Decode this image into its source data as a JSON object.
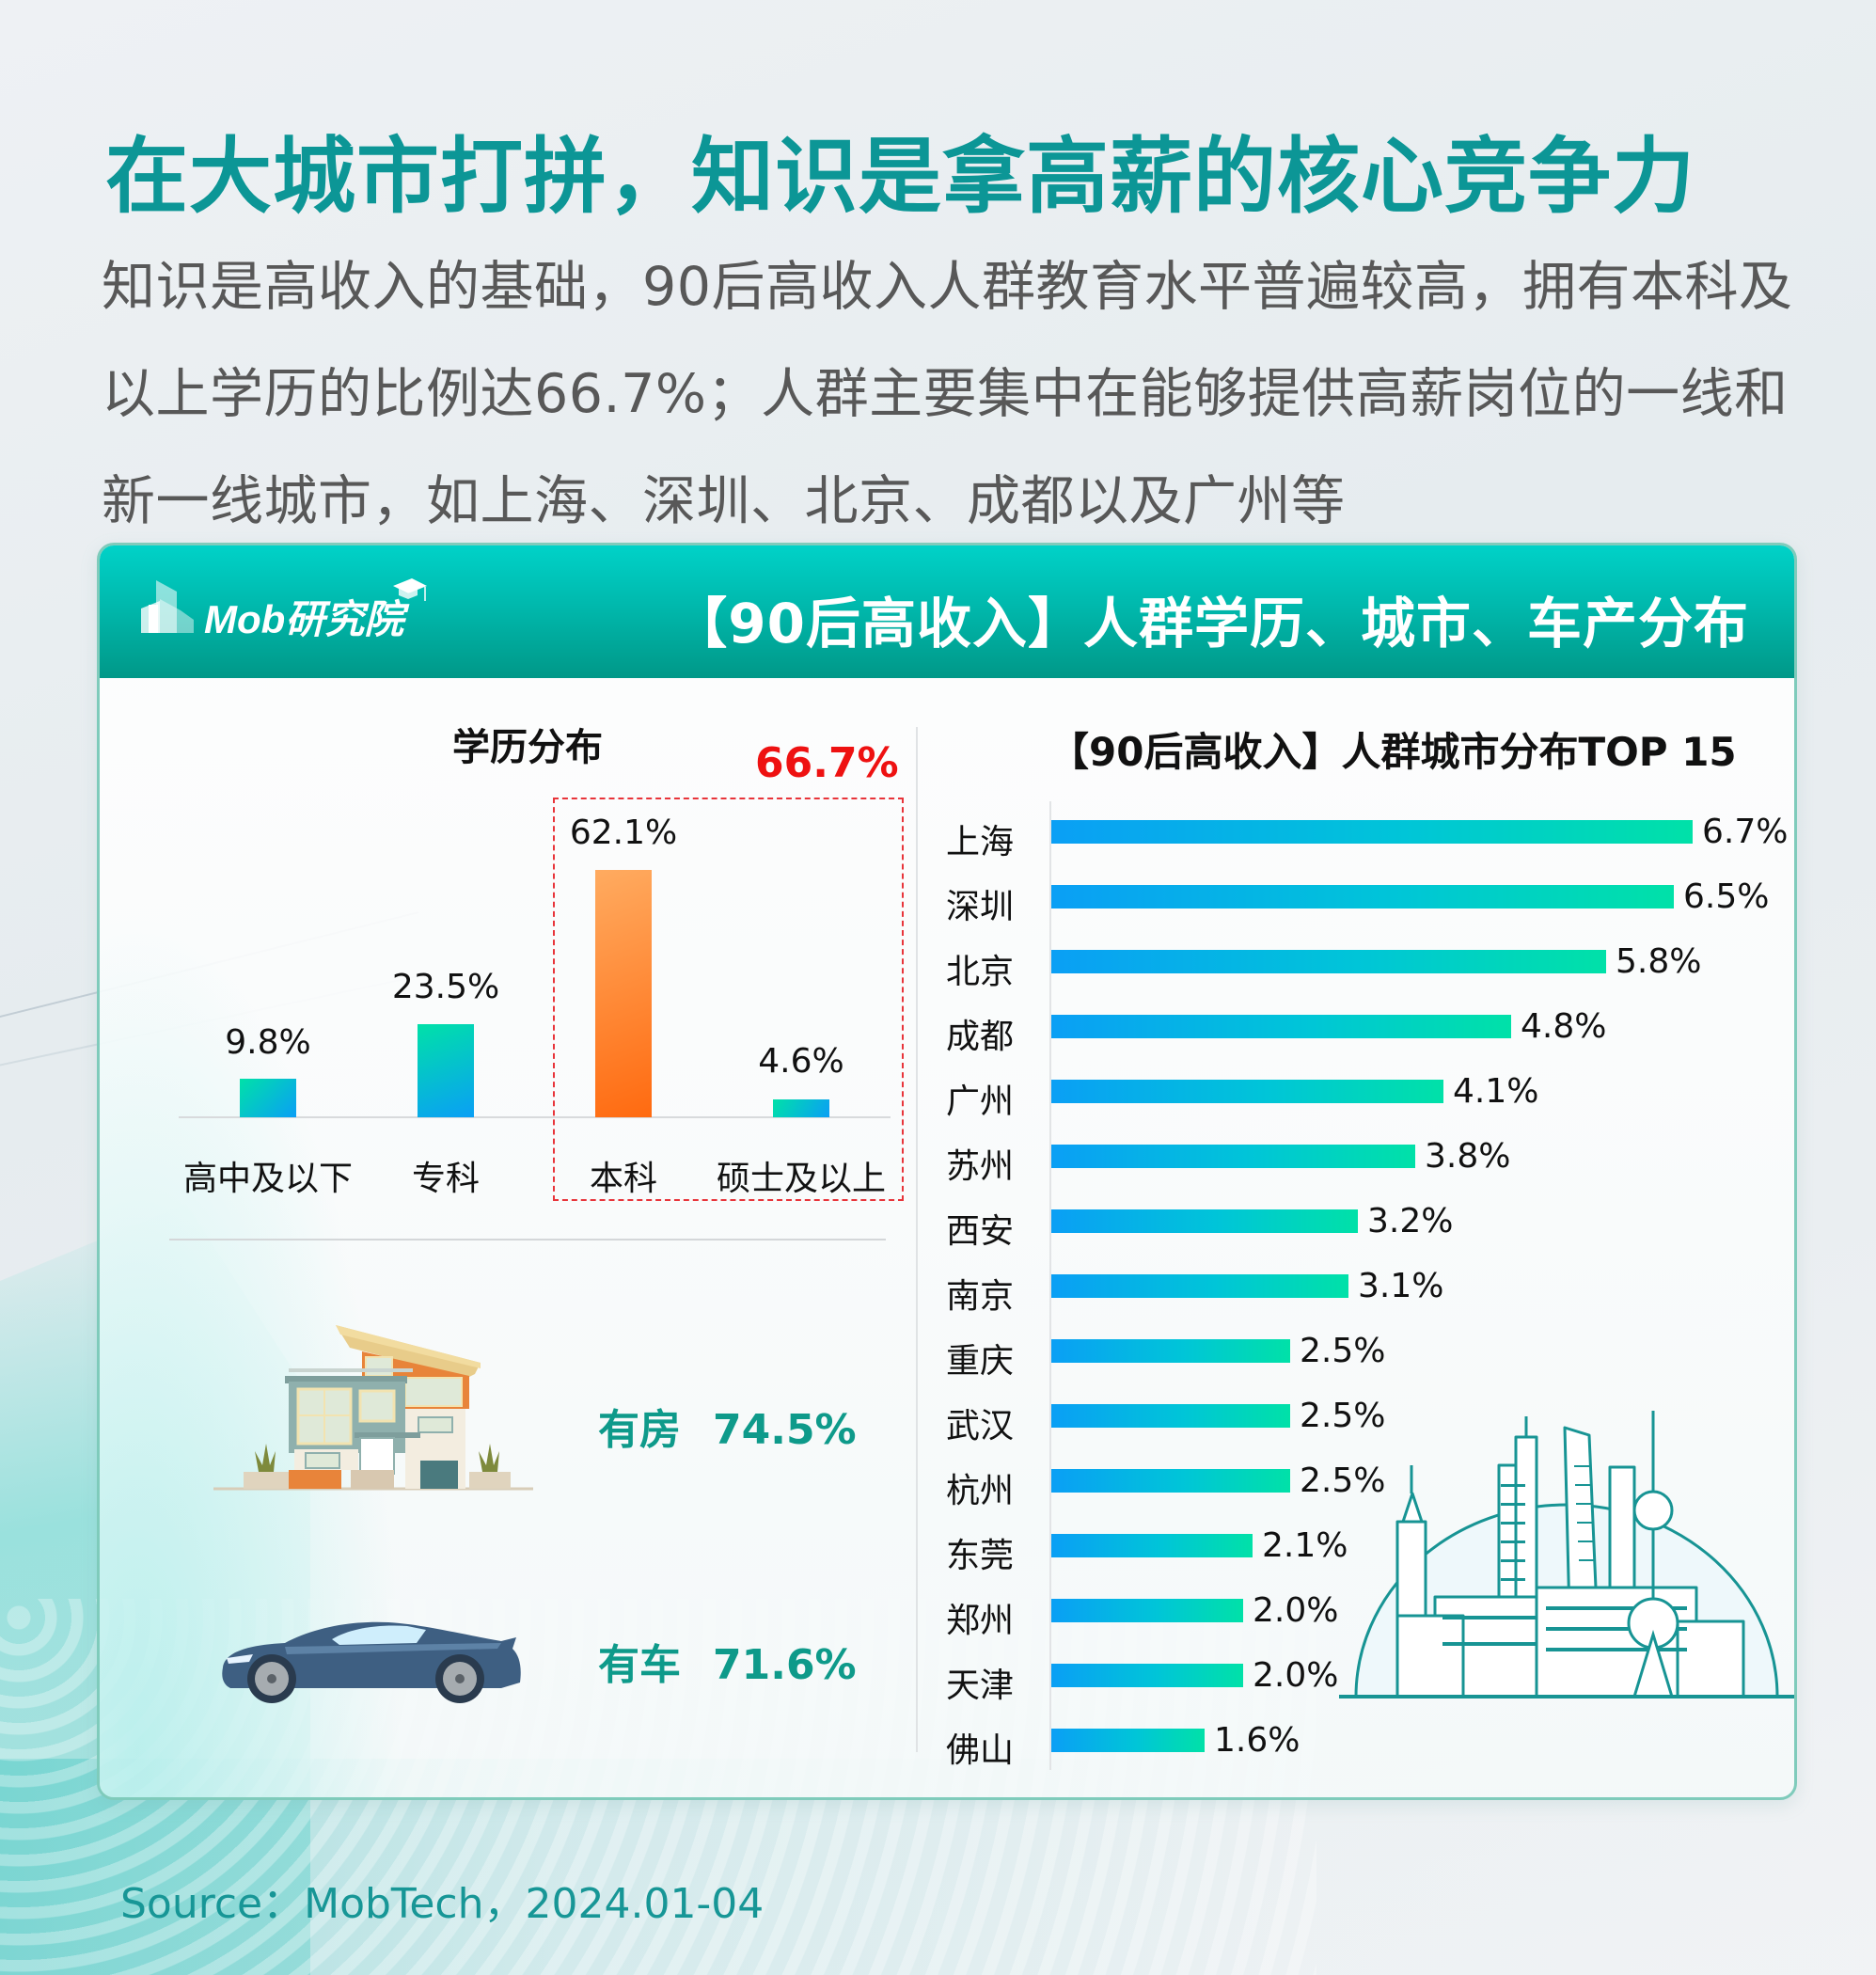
{
  "page": {
    "title": "在大城市打拼，知识是拿高薪的核心竞争力",
    "intro": "知识是高收入的基础，90后高收入人群教育水平普遍较高，拥有本科及以上学历的比例达66.7%；人群主要集中在能够提供高薪岗位的一线和新一线城市，如上海、深圳、北京、成都以及广州等"
  },
  "header": {
    "logo_text": "Mob研究院",
    "title": "【90后高收入】人群学历、城市、车产分布"
  },
  "colors": {
    "title_teal": "#0c9696",
    "header_gradient_top": "#00d2c8",
    "header_gradient_bottom": "#009888",
    "bar_blue": "#0a9ff5",
    "bar_green": "#00e1a8",
    "bar_orange_top": "#ffab60",
    "bar_orange_bottom": "#ff6a10",
    "highlight_red": "#ee1111",
    "asset_text": "#0e9a8a"
  },
  "education": {
    "title": "学历分布",
    "highlight_value": "66.7%",
    "bars": [
      {
        "label": "高中及以下",
        "value": "9.8%"
      },
      {
        "label": "专科",
        "value": "23.5%"
      },
      {
        "label": "本科",
        "value": "62.1%"
      },
      {
        "label": "硕士及以上",
        "value": "4.6%"
      }
    ]
  },
  "assets": {
    "house": {
      "label": "有房",
      "value": "74.5%"
    },
    "car": {
      "label": "有车",
      "value": "71.6%"
    }
  },
  "cities": {
    "title": "【90后高收入】人群城市分布TOP 15",
    "rows": [
      {
        "label": "上海",
        "value": "6.7%"
      },
      {
        "label": "深圳",
        "value": "6.5%"
      },
      {
        "label": "北京",
        "value": "5.8%"
      },
      {
        "label": "成都",
        "value": "4.8%"
      },
      {
        "label": "广州",
        "value": "4.1%"
      },
      {
        "label": "苏州",
        "value": "3.8%"
      },
      {
        "label": "西安",
        "value": "3.2%"
      },
      {
        "label": "南京",
        "value": "3.1%"
      },
      {
        "label": "重庆",
        "value": "2.5%"
      },
      {
        "label": "武汉",
        "value": "2.5%"
      },
      {
        "label": "杭州",
        "value": "2.5%"
      },
      {
        "label": "东莞",
        "value": "2.1%"
      },
      {
        "label": "郑州",
        "value": "2.0%"
      },
      {
        "label": "天津",
        "value": "2.0%"
      },
      {
        "label": "佛山",
        "value": "1.6%"
      }
    ]
  },
  "footer": {
    "source": "Source：MobTech，2024.01-04"
  },
  "chart_data": [
    {
      "type": "bar",
      "title": "学历分布",
      "categories": [
        "高中及以下",
        "专科",
        "本科",
        "硕士及以上"
      ],
      "values": [
        9.8,
        23.5,
        62.1,
        4.6
      ],
      "unit": "%",
      "annotations": [
        "本科 + 硕士及以上 highlighted in red dashed box: 66.7%"
      ],
      "xlabel": "",
      "ylabel": "",
      "grid": false
    },
    {
      "type": "bar",
      "orientation": "horizontal",
      "title": "【90后高收入】人群城市分布TOP 15",
      "categories": [
        "上海",
        "深圳",
        "北京",
        "成都",
        "广州",
        "苏州",
        "西安",
        "南京",
        "重庆",
        "武汉",
        "杭州",
        "东莞",
        "郑州",
        "天津",
        "佛山"
      ],
      "values": [
        6.7,
        6.5,
        5.8,
        4.8,
        4.1,
        3.8,
        3.2,
        3.1,
        2.5,
        2.5,
        2.5,
        2.1,
        2.0,
        2.0,
        1.6
      ],
      "unit": "%",
      "grid": false
    },
    {
      "type": "table",
      "title": "车产分布",
      "categories": [
        "有房",
        "有车"
      ],
      "values": [
        74.5,
        71.6
      ],
      "unit": "%"
    }
  ]
}
